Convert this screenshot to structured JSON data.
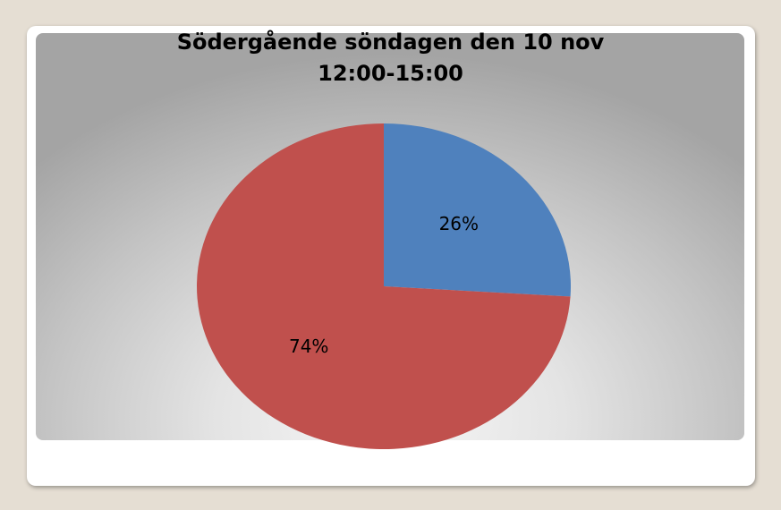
{
  "chart_data": {
    "type": "pie",
    "title_line1": "Södergående söndagen den 10 nov",
    "title_line2": "12:00-15:00",
    "slices": [
      {
        "value": 26,
        "label": "26%",
        "color": "#4f81bd"
      },
      {
        "value": 74,
        "label": "74%",
        "color": "#c0504d"
      }
    ],
    "start_angle_deg": 0,
    "direction": "clockwise",
    "legend": "none"
  }
}
